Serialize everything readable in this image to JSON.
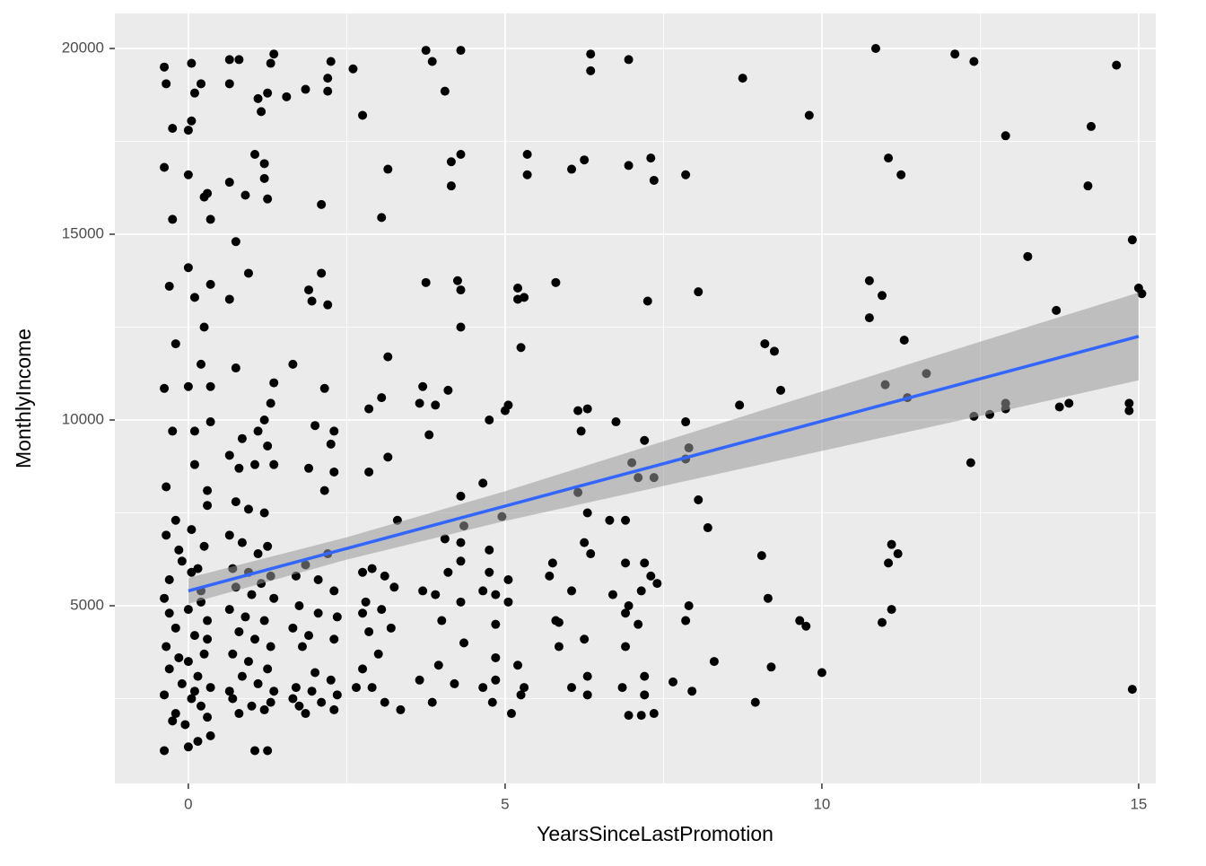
{
  "chart_data": {
    "type": "scatter",
    "xlabel": "YearsSinceLastPromotion",
    "ylabel": "MonthlyIncome",
    "xlim": [
      -1.16,
      15.27
    ],
    "ylim": [
      217,
      20942
    ],
    "xticks": [
      0,
      5,
      10,
      15
    ],
    "yticks": [
      5000,
      10000,
      15000,
      20000
    ],
    "minor_xticks": [
      2.5,
      7.5,
      12.5
    ],
    "minor_yticks": [
      2500,
      7500,
      12500,
      17500
    ],
    "grid": true,
    "series": [
      {
        "color": "#000000",
        "x": [
          -0.38,
          -0.35,
          -0.25,
          -0.38,
          -0.25,
          0.0,
          0.0,
          0.05,
          0.1,
          0.05,
          0.2,
          -0.3,
          0.0,
          0.25,
          -0.2,
          0.35,
          -0.38,
          0.0,
          0.1,
          0.35,
          -0.35,
          0.1,
          0.3,
          -0.2,
          0.05,
          0.25,
          -0.35,
          -0.1,
          0.15,
          -0.3,
          0.2,
          -0.38,
          0.0,
          0.3,
          -0.2,
          0.1,
          -0.35,
          0.25,
          0.0,
          -0.3,
          0.15,
          -0.1,
          0.35,
          -0.38,
          0.05,
          0.2,
          -0.2,
          0.3,
          -0.05,
          0.35,
          -0.38,
          0.0,
          0.15,
          -0.25,
          0.1,
          -0.15,
          0.3,
          -0.3,
          0.2,
          0.05,
          -0.15,
          0.3,
          -0.25,
          0.2,
          0.1,
          0.35,
          0.35,
          0.3,
          0.25,
          0.65,
          0.8,
          1.1,
          1.25,
          1.35,
          1.3,
          0.65,
          1.15,
          1.05,
          1.2,
          0.65,
          0.9,
          1.2,
          1.25,
          0.75,
          0.95,
          0.65,
          0.75,
          1.35,
          1.3,
          1.2,
          0.85,
          1.1,
          0.65,
          1.25,
          0.8,
          1.05,
          1.35,
          0.75,
          0.95,
          1.2,
          0.65,
          0.85,
          1.25,
          1.1,
          0.7,
          0.95,
          1.3,
          0.75,
          1.0,
          1.35,
          0.65,
          0.9,
          1.2,
          0.8,
          1.05,
          1.3,
          0.7,
          0.95,
          1.25,
          0.85,
          1.1,
          1.35,
          0.7,
          1.0,
          1.2,
          0.8,
          1.3,
          1.05,
          1.25,
          0.65,
          1.15,
          1.55,
          1.85,
          2.2,
          2.25,
          2.2,
          2.1,
          2.1,
          1.9,
          1.95,
          2.2,
          1.65,
          2.15,
          2.0,
          2.3,
          2.25,
          1.9,
          2.15,
          2.3,
          1.85,
          2.2,
          1.7,
          2.05,
          2.3,
          1.75,
          2.05,
          2.35,
          1.65,
          1.9,
          2.3,
          1.8,
          2.0,
          2.25,
          1.7,
          1.95,
          2.35,
          1.65,
          2.1,
          1.85,
          2.3,
          1.75,
          2.6,
          2.75,
          3.05,
          3.15,
          3.15,
          3.05,
          2.85,
          3.15,
          2.85,
          3.3,
          2.9,
          3.1,
          2.75,
          3.25,
          2.8,
          3.05,
          2.75,
          3.2,
          2.85,
          3.0,
          2.75,
          2.9,
          3.1,
          3.35,
          2.65,
          3.75,
          3.85,
          4.05,
          4.3,
          4.3,
          4.15,
          4.15,
          3.75,
          4.25,
          4.3,
          4.3,
          3.7,
          3.65,
          3.9,
          4.1,
          3.8,
          4.3,
          4.35,
          4.05,
          4.3,
          4.3,
          4.1,
          3.7,
          3.9,
          4.3,
          4.0,
          3.95,
          4.35,
          3.65,
          4.2,
          3.85,
          5.35,
          5.35,
          5.2,
          5.3,
          5.2,
          5.25,
          5.05,
          5.0,
          4.75,
          4.65,
          4.95,
          4.75,
          4.75,
          5.05,
          4.65,
          4.85,
          5.05,
          4.85,
          4.85,
          5.2,
          4.85,
          5.3,
          5.25,
          4.65,
          5.1,
          4.8,
          6.35,
          6.35,
          6.05,
          6.25,
          5.8,
          6.15,
          6.3,
          6.2,
          6.15,
          6.3,
          6.25,
          6.35,
          5.75,
          5.7,
          6.05,
          5.8,
          5.85,
          6.25,
          5.85,
          6.3,
          6.05,
          6.3,
          6.95,
          6.95,
          7.3,
          7.35,
          7.25,
          6.75,
          7.2,
          7.0,
          7.1,
          7.35,
          6.65,
          6.9,
          7.2,
          6.9,
          7.3,
          7.4,
          7.15,
          6.7,
          6.95,
          6.9,
          7.1,
          6.9,
          7.2,
          6.85,
          6.95,
          7.2,
          7.35,
          7.15,
          8.75,
          7.85,
          8.05,
          7.85,
          7.9,
          7.85,
          8.05,
          8.2,
          7.85,
          7.9,
          8.3,
          7.95,
          7.65,
          9.8,
          9.1,
          9.25,
          9.35,
          8.7,
          9.05,
          9.15,
          9.65,
          9.75,
          9.2,
          8.95,
          10.0,
          10.85,
          11.05,
          11.25,
          10.75,
          10.95,
          10.75,
          11.3,
          11.0,
          11.65,
          11.35,
          11.1,
          11.2,
          11.05,
          11.1,
          10.95,
          12.1,
          12.4,
          12.9,
          13.25,
          12.4,
          12.65,
          12.9,
          12.9,
          12.35,
          14.65,
          14.25,
          14.2,
          13.7,
          13.75,
          13.9,
          14.9,
          15.0,
          15.05,
          14.85,
          14.85,
          14.9
        ],
        "values": [
          19500,
          19050,
          17850,
          16800,
          15400,
          16600,
          17800,
          18050,
          18800,
          19600,
          19050,
          13600,
          14100,
          12500,
          12050,
          10900,
          10850,
          10900,
          9700,
          9950,
          8200,
          8800,
          8100,
          7300,
          7050,
          6600,
          6900,
          6200,
          6000,
          5700,
          5400,
          5200,
          4900,
          4600,
          4400,
          4200,
          3900,
          3700,
          3500,
          3300,
          3100,
          2900,
          2800,
          2600,
          2500,
          2300,
          2100,
          2000,
          1800,
          1500,
          1100,
          1200,
          1350,
          1900,
          2700,
          3600,
          4100,
          4800,
          5100,
          5900,
          6500,
          7700,
          9700,
          11500,
          13300,
          13650,
          15400,
          16100,
          16000,
          19700,
          19700,
          18650,
          18800,
          19850,
          19600,
          19050,
          18300,
          17150,
          16900,
          16400,
          16050,
          16500,
          15950,
          14800,
          13950,
          13250,
          11400,
          11000,
          10450,
          10000,
          9500,
          9700,
          9050,
          9300,
          8700,
          8800,
          8800,
          7800,
          7600,
          7500,
          6900,
          6700,
          6600,
          6400,
          6000,
          5900,
          5800,
          5500,
          5300,
          5200,
          4900,
          4700,
          4600,
          4300,
          4100,
          3900,
          3700,
          3500,
          3300,
          3100,
          2900,
          2700,
          2500,
          2300,
          2200,
          2100,
          2400,
          1100,
          1100,
          2700,
          5600,
          18700,
          18900,
          19200,
          19650,
          18850,
          15800,
          13950,
          13500,
          13200,
          13100,
          11500,
          10850,
          9850,
          9700,
          9350,
          8700,
          8100,
          8600,
          6100,
          6400,
          5800,
          5700,
          5400,
          5000,
          4800,
          4700,
          4400,
          4200,
          4100,
          3900,
          3200,
          3000,
          2800,
          2700,
          2600,
          2500,
          2400,
          2100,
          2200,
          2300,
          19450,
          18200,
          15450,
          16750,
          11700,
          10600,
          10300,
          9000,
          8600,
          7300,
          6000,
          5800,
          5900,
          5500,
          5100,
          4900,
          4800,
          4400,
          4300,
          3700,
          3300,
          2800,
          2400,
          2200,
          2800,
          19950,
          19650,
          18850,
          19950,
          17150,
          16950,
          16300,
          13700,
          13750,
          13500,
          12500,
          10900,
          10450,
          10400,
          10800,
          9600,
          7950,
          7150,
          6800,
          6700,
          6200,
          5900,
          5400,
          5300,
          5100,
          4600,
          3400,
          4000,
          3000,
          2900,
          2400,
          17150,
          16600,
          13550,
          13300,
          13250,
          11950,
          10400,
          10250,
          10000,
          8300,
          7400,
          6500,
          5900,
          5700,
          5400,
          5300,
          5100,
          4500,
          3600,
          3400,
          3000,
          2800,
          2600,
          2800,
          2100,
          2400,
          19850,
          19400,
          16750,
          17000,
          13700,
          10250,
          10300,
          9700,
          8050,
          7500,
          6700,
          6400,
          6150,
          5800,
          5400,
          4600,
          4550,
          4100,
          3900,
          3100,
          2800,
          2600,
          19700,
          16850,
          17050,
          16450,
          13200,
          9950,
          9450,
          8850,
          8450,
          8450,
          7300,
          7300,
          6150,
          6150,
          5800,
          5600,
          5400,
          5300,
          5000,
          4800,
          4500,
          3900,
          3100,
          2800,
          2050,
          2600,
          2100,
          2050,
          19200,
          16600,
          13450,
          9950,
          9250,
          8950,
          7850,
          7100,
          4600,
          5000,
          3500,
          2700,
          2950,
          18200,
          12050,
          11850,
          10800,
          10400,
          6350,
          5200,
          4600,
          4450,
          3350,
          2400,
          3200,
          20000,
          17050,
          16600,
          13750,
          13350,
          12750,
          12150,
          10950,
          11250,
          10600,
          6650,
          6400,
          6150,
          4900,
          4550,
          19850,
          19650,
          17650,
          14400,
          10100,
          10150,
          10450,
          10300,
          8850,
          19550,
          17900,
          16300,
          12950,
          10350,
          10450,
          14850,
          13550,
          13400,
          10450,
          10250,
          2750
        ]
      }
    ],
    "fit": {
      "color": "#3366FF",
      "band_color": "#999999",
      "x": [
        0,
        2.5,
        5,
        7.5,
        10,
        12.5,
        15
      ],
      "values": [
        5400,
        6542,
        7683,
        8825,
        9967,
        11108,
        12250
      ],
      "lower": [
        5050,
        6242,
        7283,
        8225,
        9167,
        10108,
        11070
      ],
      "upper": [
        5750,
        6842,
        8083,
        9425,
        10767,
        12108,
        13430
      ]
    }
  }
}
